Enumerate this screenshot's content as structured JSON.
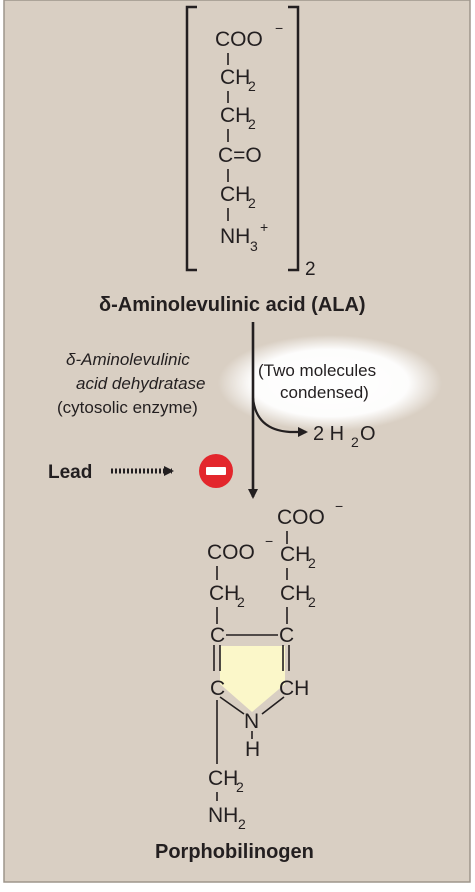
{
  "colors": {
    "background": "#d9cfc3",
    "ring_fill": "#fbf7c9",
    "inhibit_red": "#e3262c",
    "ink": "#231f20"
  },
  "ala_monomer": {
    "coo": "COO",
    "coo_charge": "−",
    "ch2_c": "CH",
    "ch2_sub": "2",
    "carbonyl": "C=O",
    "nh3": "NH",
    "nh3_sub": "3",
    "nh3_charge": "+",
    "bracket_multiplier": "2"
  },
  "ala_label": "δ-Aminolevulinic acid (ALA)",
  "enzyme": {
    "line1": "δ-Aminolevulinic",
    "line2": "acid dehydratase",
    "line3": "(cytosolic enzyme)"
  },
  "condensation_note": {
    "line1": "(Two molecules",
    "line2": "condensed)"
  },
  "water_product": {
    "coefficient": "2 H",
    "sub": "2",
    "tail": "O"
  },
  "inhibitor": {
    "label": "Lead",
    "symbol": "inhibit-minus-icon"
  },
  "porphobilinogen": {
    "coo": "COO",
    "coo_charge": "−",
    "ch2_c": "CH",
    "ch2_sub": "2",
    "ring_c": "C",
    "ring_ch": "CH",
    "ring_n": "N",
    "ring_h": "H",
    "nh2": "NH",
    "nh2_sub": "2"
  },
  "product_label": "Porphobilinogen"
}
